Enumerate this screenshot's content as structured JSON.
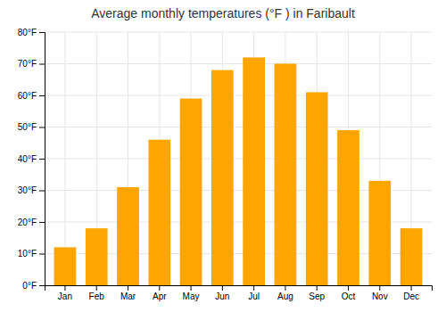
{
  "chart_data": {
    "type": "bar",
    "title": "Average monthly temperatures (°F ) in Faribault",
    "categories": [
      "Jan",
      "Feb",
      "Mar",
      "Apr",
      "May",
      "Jun",
      "Jul",
      "Aug",
      "Sep",
      "Oct",
      "Nov",
      "Dec"
    ],
    "values": [
      12,
      18,
      31,
      46,
      59,
      68,
      72,
      70,
      61,
      49,
      33,
      18
    ],
    "color": "#FFA500",
    "ylim": [
      0,
      80
    ],
    "yticks": [
      {
        "value": 0,
        "label": "0°F"
      },
      {
        "value": 10,
        "label": "10°F"
      },
      {
        "value": 20,
        "label": "20°F"
      },
      {
        "value": 30,
        "label": "30°F"
      },
      {
        "value": 40,
        "label": "40°F"
      },
      {
        "value": 50,
        "label": "50°F"
      },
      {
        "value": 60,
        "label": "60°F"
      },
      {
        "value": 70,
        "label": "70°F"
      },
      {
        "value": 80,
        "label": "80°F"
      }
    ],
    "grid": true
  }
}
